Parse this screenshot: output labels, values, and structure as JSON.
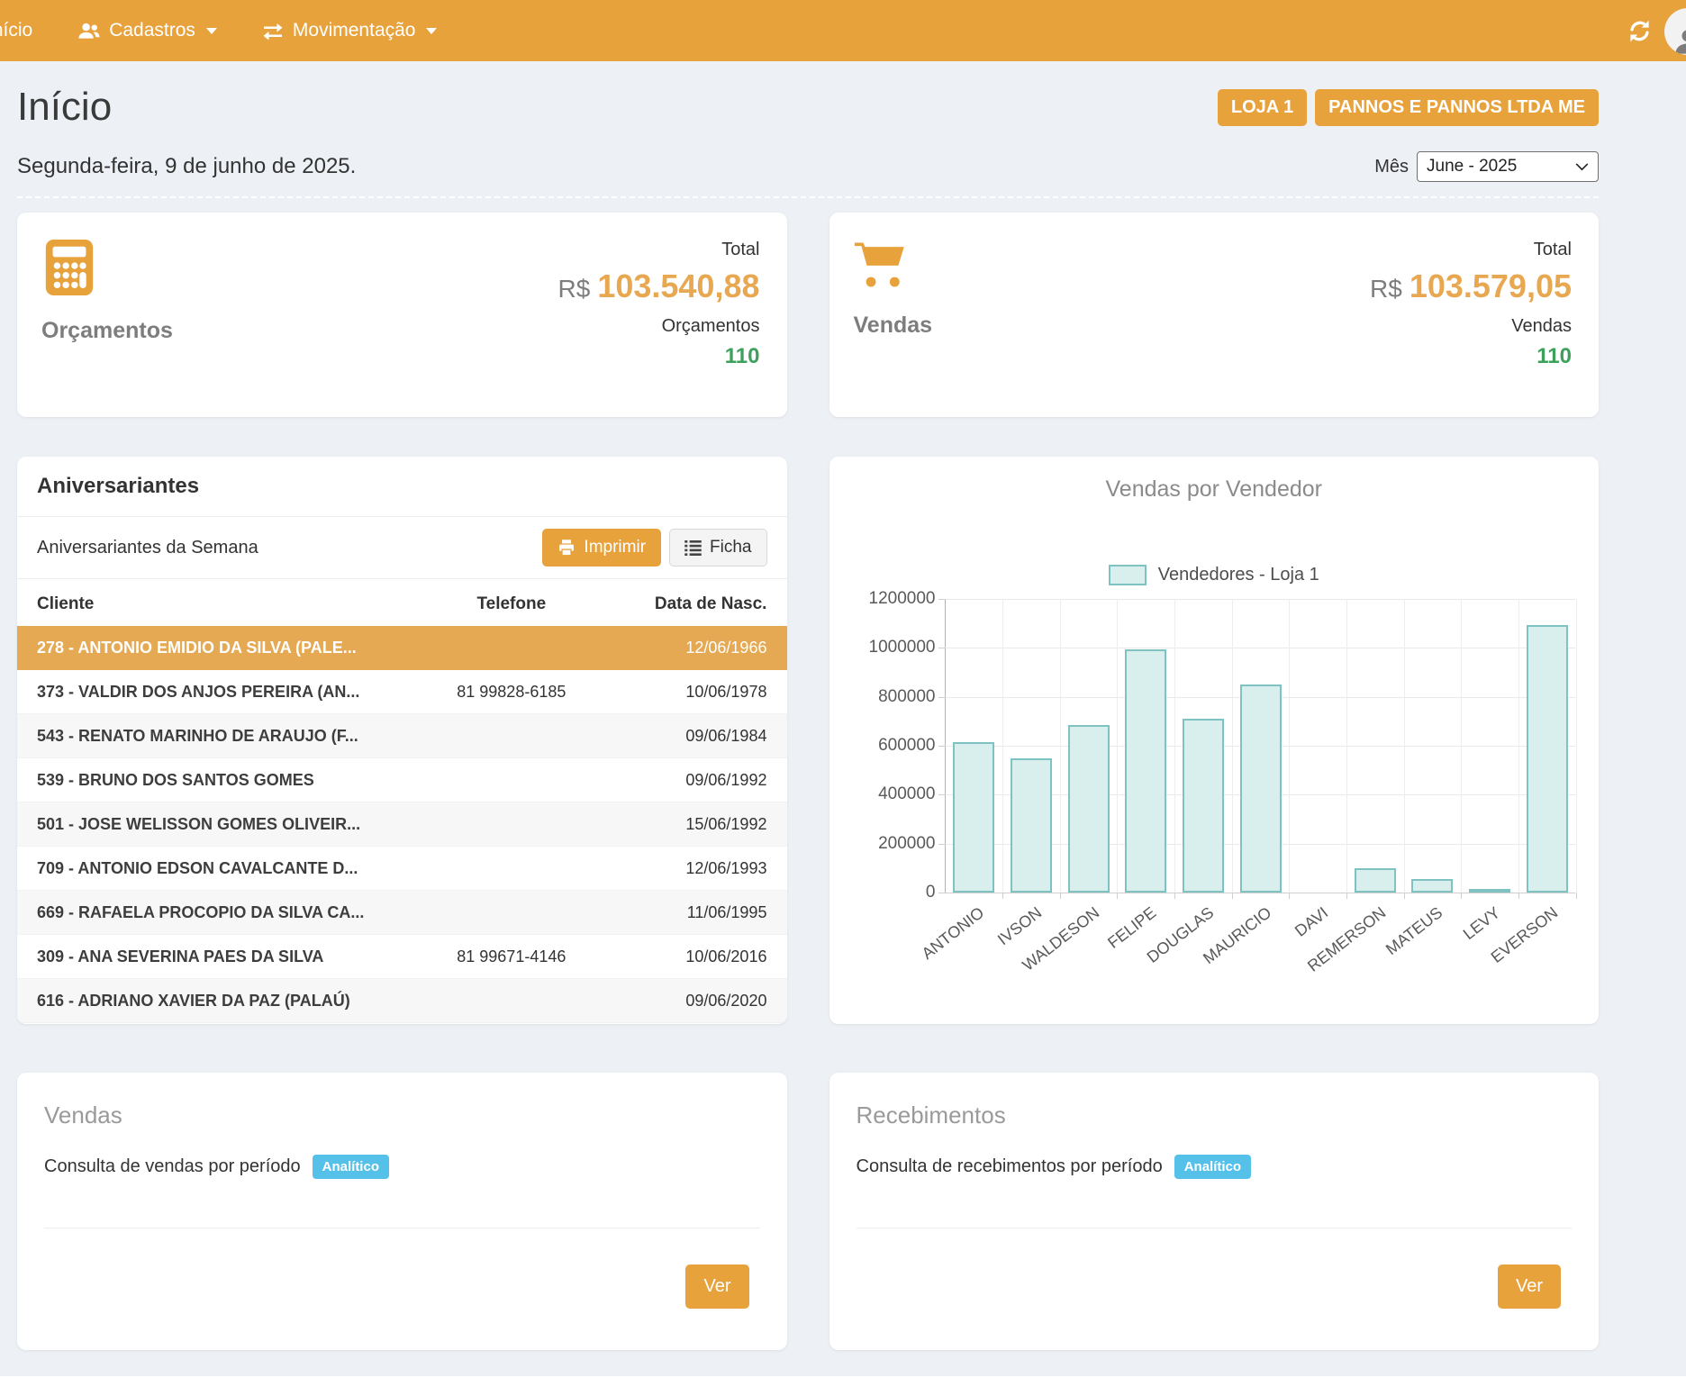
{
  "colors": {
    "accent": "#e8a23c",
    "amount_orange": "#e8a851",
    "count_green": "#3ea05c",
    "badge_blue": "#55c1e9",
    "row_highlight": "#e5a954",
    "bar_fill": "#d9efee",
    "bar_border": "#7ec2c2"
  },
  "navbar": {
    "home": "Início",
    "cadastros": "Cadastros",
    "movimentacao": "Movimentação"
  },
  "header": {
    "title": "Início",
    "store_badge": "LOJA 1",
    "company_badge": "PANNOS E PANNOS LTDA ME",
    "date": "Segunda-feira, 9 de junho de 2025.",
    "month_label": "Mês",
    "month_value": "June - 2025"
  },
  "summary_cards": [
    {
      "icon": "calculator-icon",
      "title": "Orçamentos",
      "total_label": "Total",
      "currency": "R$",
      "amount": "103.540,88",
      "count_label": "Orçamentos",
      "count": "110"
    },
    {
      "icon": "cart-icon",
      "title": "Vendas",
      "total_label": "Total",
      "currency": "R$",
      "amount": "103.579,05",
      "count_label": "Vendas",
      "count": "110"
    }
  ],
  "birthdays": {
    "title": "Aniversariantes",
    "subtitle": "Aniversariantes da Semana",
    "print_button": "Imprimir",
    "ficha_button": "Ficha",
    "columns": [
      "Cliente",
      "Telefone",
      "Data de Nasc."
    ],
    "rows": [
      {
        "client": "278 - ANTONIO EMIDIO DA SILVA (PALE...",
        "phone": "",
        "birth": "12/06/1966",
        "highlighted": true
      },
      {
        "client": "373 - VALDIR DOS ANJOS PEREIRA (AN...",
        "phone": "81 99828-6185",
        "birth": "10/06/1978",
        "highlighted": false
      },
      {
        "client": "543 - RENATO MARINHO DE ARAUJO (F...",
        "phone": "",
        "birth": "09/06/1984",
        "highlighted": false
      },
      {
        "client": "539 - BRUNO DOS SANTOS GOMES",
        "phone": "",
        "birth": "09/06/1992",
        "highlighted": false
      },
      {
        "client": "501 - JOSE WELISSON GOMES OLIVEIR...",
        "phone": "",
        "birth": "15/06/1992",
        "highlighted": false
      },
      {
        "client": "709 - ANTONIO EDSON CAVALCANTE D...",
        "phone": "",
        "birth": "12/06/1993",
        "highlighted": false
      },
      {
        "client": "669 - RAFAELA PROCOPIO DA SILVA CA...",
        "phone": "",
        "birth": "11/06/1995",
        "highlighted": false
      },
      {
        "client": "309 - ANA SEVERINA PAES DA SILVA",
        "phone": "81 99671-4146",
        "birth": "10/06/2016",
        "highlighted": false
      },
      {
        "client": "616 - ADRIANO XAVIER DA PAZ (PALAÚ)",
        "phone": "",
        "birth": "09/06/2020",
        "highlighted": false
      }
    ]
  },
  "chart_data": {
    "type": "bar",
    "title": "Vendas por Vendedor",
    "legend": "Vendedores - Loja 1",
    "legend_position": "top",
    "categories": [
      "ANTONIO",
      "IVSON",
      "WALDESON",
      "FELIPE",
      "DOUGLAS",
      "MAURICIO",
      "DAVI",
      "REMERSON",
      "MATEUS",
      "LEVY",
      "EVERSON"
    ],
    "values": [
      615000,
      550000,
      685000,
      995000,
      710000,
      850000,
      0,
      100000,
      55000,
      10000,
      1095000
    ],
    "xlabel": "",
    "ylabel": "",
    "ylim": [
      0,
      1200000
    ],
    "ytick_step": 200000,
    "grid": true
  },
  "bottom_cards": [
    {
      "title": "Vendas",
      "description": "Consulta de vendas por período",
      "badge": "Analítico",
      "button": "Ver"
    },
    {
      "title": "Recebimentos",
      "description": "Consulta de recebimentos por período",
      "badge": "Analítico",
      "button": "Ver"
    }
  ]
}
